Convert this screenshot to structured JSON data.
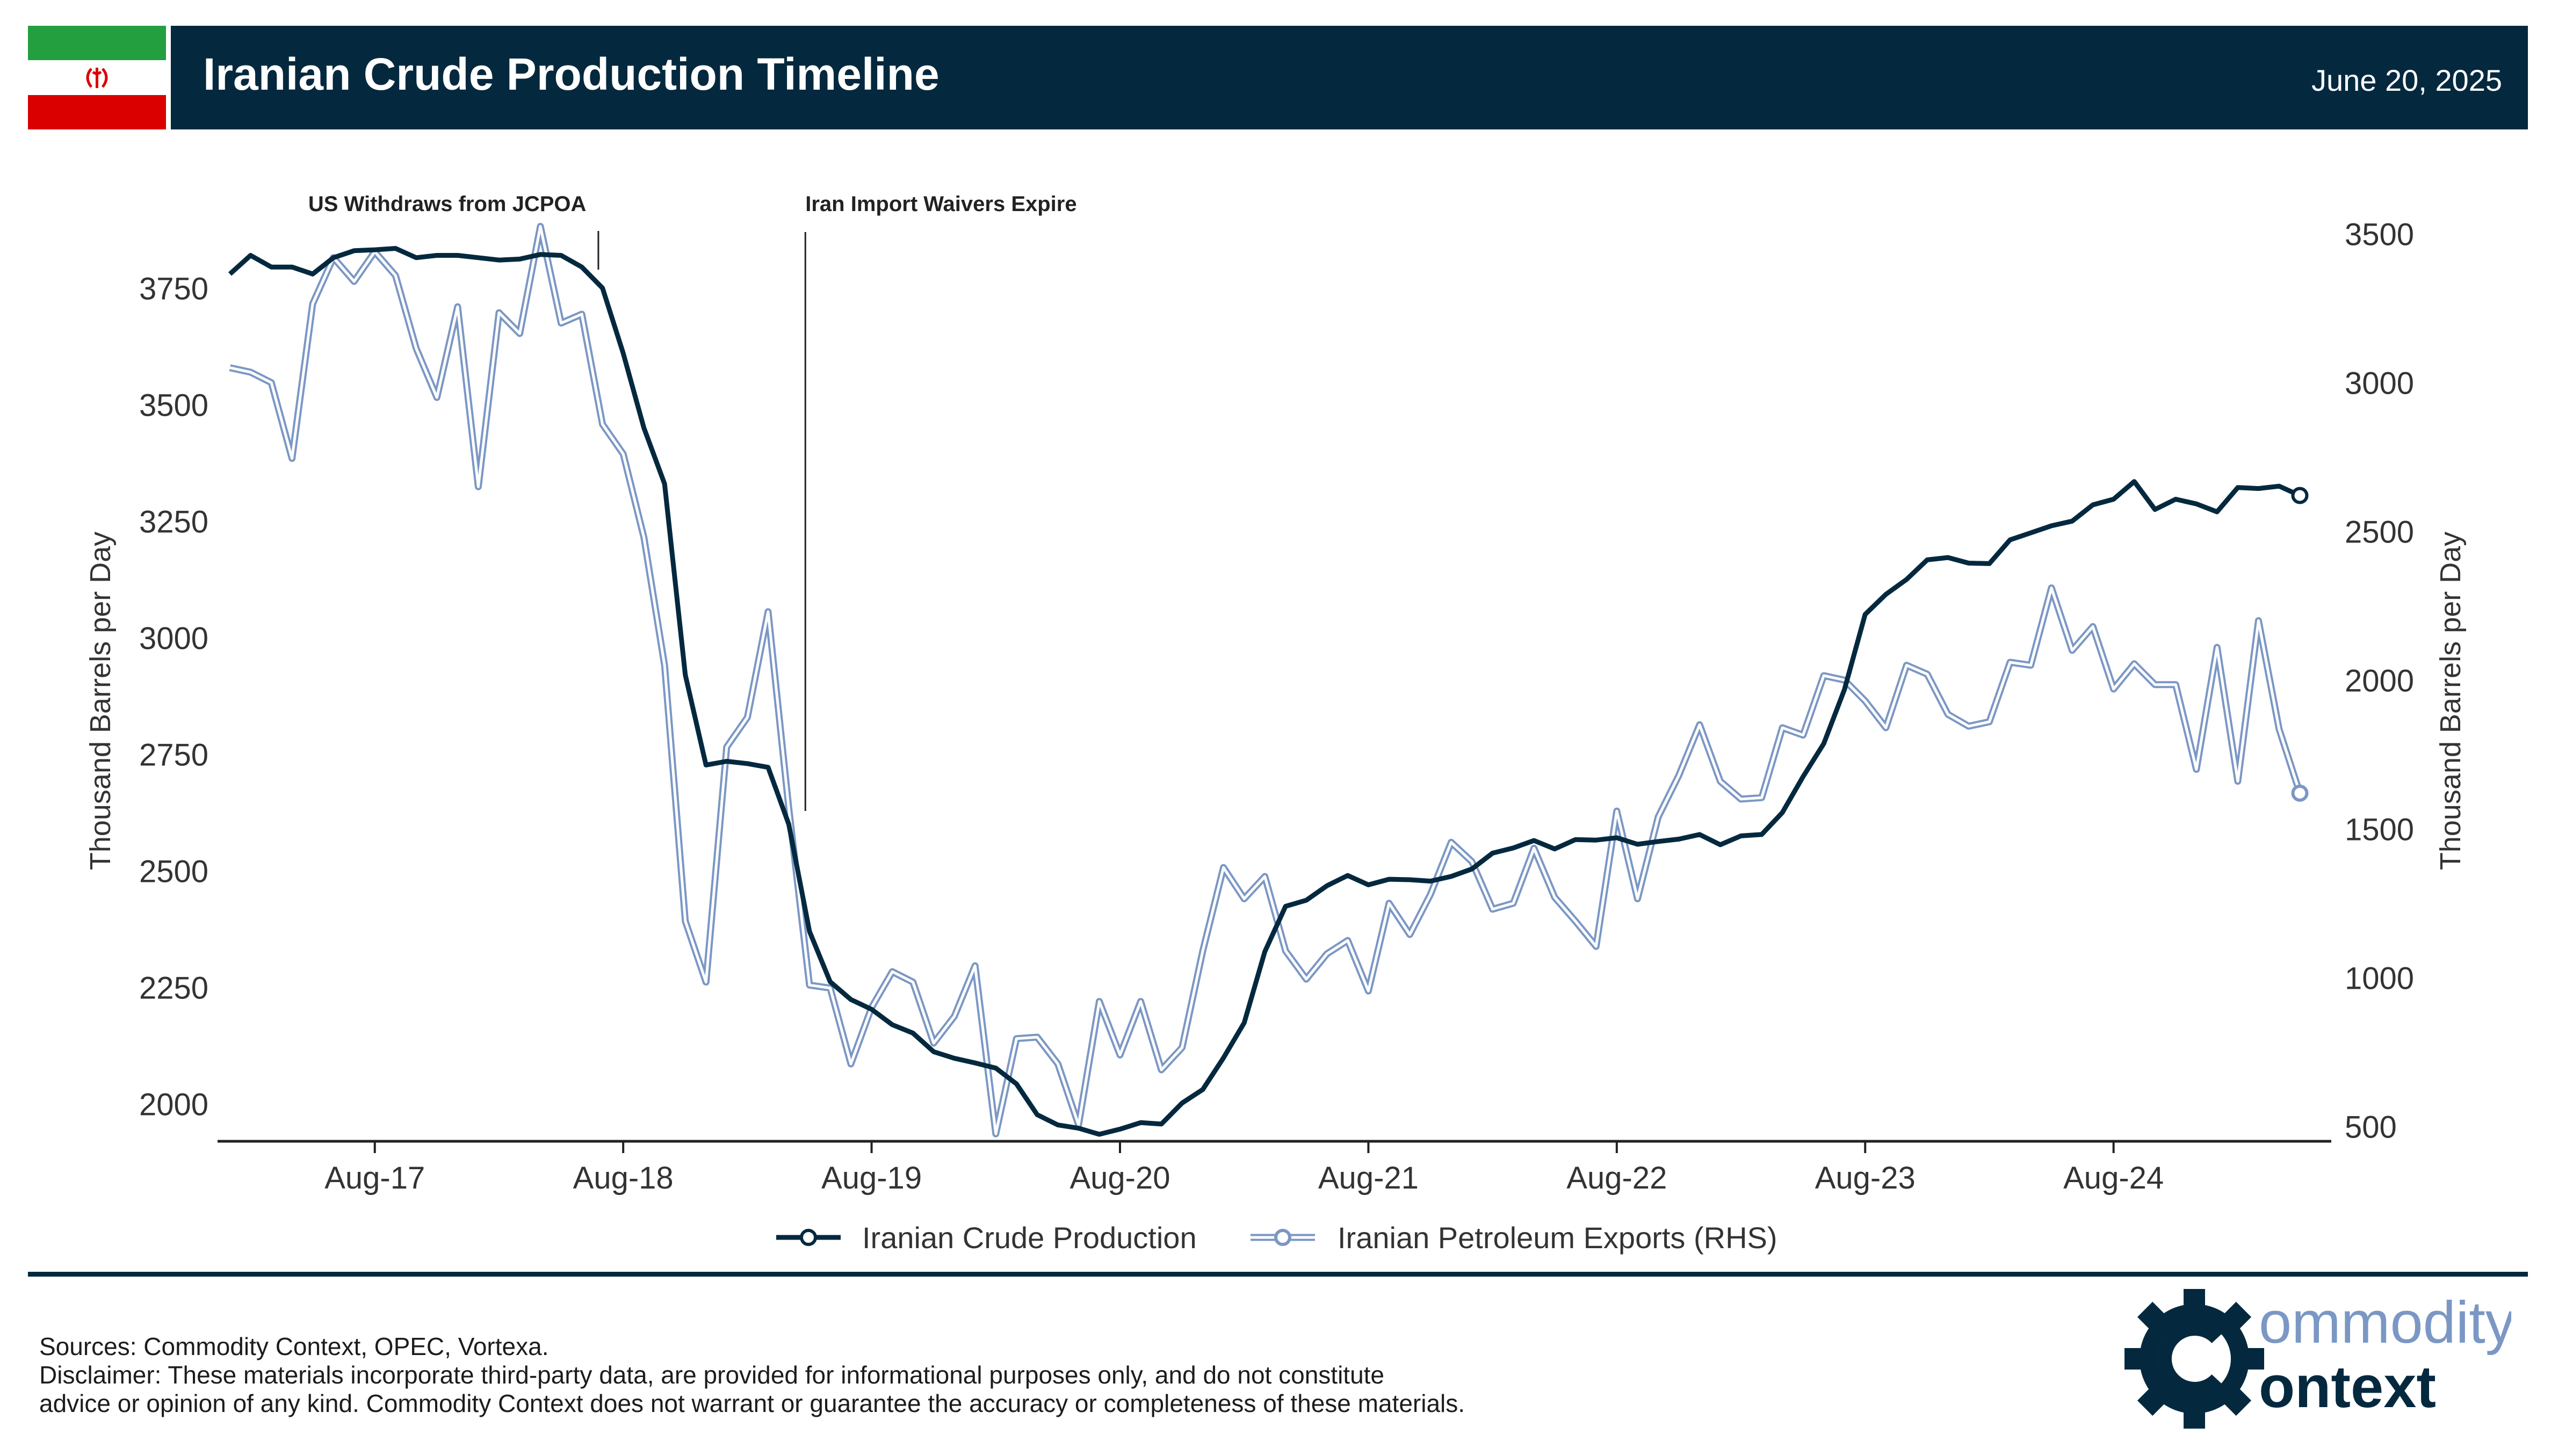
{
  "header": {
    "title": "Iranian Crude Production Timeline",
    "date": "June 20, 2025"
  },
  "footer": {
    "sources": "Sources: Commodity Context, OPEC, Vortexa.",
    "disclaimer_line1": "Disclaimer: These materials incorporate third-party data, are provided for informational purposes only, and do not constitute",
    "disclaimer_line2": "advice or opinion of any kind. Commodity Context does not warrant or guarantee the accuracy or completeness of these materials.",
    "logo_line1": "ommodity",
    "logo_line2": "ontext"
  },
  "colors": {
    "navy": "#04293f",
    "light_blue": "#7b97c4",
    "flag_green": "#239f40",
    "flag_red": "#da0000"
  },
  "chart_data": {
    "type": "line",
    "title": "Iranian Crude Production Timeline",
    "ylabel": "Thousand Barrels per Day",
    "ylabel_right": "Thousand Barrels per Day",
    "ylim": [
      1920,
      3930
    ],
    "ylim_right": [
      450,
      3600
    ],
    "yticks": [
      2000,
      2250,
      2500,
      2750,
      3000,
      3250,
      3500,
      3750
    ],
    "yticks_right": [
      500,
      1000,
      1500,
      2000,
      2500,
      3000,
      3500
    ],
    "x_start": "Jan-17",
    "x_count": 102,
    "xticks": [
      {
        "label": "Aug-17",
        "index": 7
      },
      {
        "label": "Aug-18",
        "index": 19
      },
      {
        "label": "Aug-19",
        "index": 31
      },
      {
        "label": "Aug-20",
        "index": 43
      },
      {
        "label": "Aug-21",
        "index": 55
      },
      {
        "label": "Aug-22",
        "index": 67
      },
      {
        "label": "Aug-23",
        "index": 79
      },
      {
        "label": "Aug-24",
        "index": 91
      }
    ],
    "annotations": [
      {
        "label": "US Withdraws from JCPOA",
        "index": 17.8
      },
      {
        "label": "Iran Import Waivers Expire",
        "index": 27.8
      }
    ],
    "series": [
      {
        "name": "Iranian Crude Production",
        "axis": "left",
        "values": [
          3780,
          3820,
          3795,
          3795,
          3780,
          3815,
          3830,
          3832,
          3835,
          3815,
          3820,
          3820,
          3815,
          3810,
          3812,
          3822,
          3820,
          3795,
          3750,
          3610,
          3450,
          3330,
          2920,
          2727,
          2735,
          2730,
          2722,
          2600,
          2370,
          2262,
          2224,
          2203,
          2170,
          2152,
          2112,
          2098,
          2088,
          2077,
          2043,
          1977,
          1955,
          1948,
          1935,
          1946,
          1960,
          1957,
          2002,
          2031,
          2099,
          2174,
          2327,
          2424,
          2437,
          2468,
          2490,
          2470,
          2482,
          2481,
          2478,
          2488,
          2504,
          2538,
          2549,
          2565,
          2547,
          2567,
          2566,
          2571,
          2557,
          2563,
          2568,
          2578,
          2556,
          2575,
          2578,
          2625,
          2702,
          2773,
          2889,
          3050,
          3093,
          3125,
          3167,
          3172,
          3160,
          3159,
          3210,
          3225,
          3240,
          3250,
          3285,
          3297,
          3335,
          3275,
          3297,
          3287,
          3270,
          3322,
          3320,
          3325,
          3305
        ]
      },
      {
        "name": "Iranian Petroleum Exports (RHS)",
        "axis": "right",
        "values": [
          3050,
          3035,
          3000,
          2745,
          3265,
          3420,
          3340,
          3440,
          3360,
          3115,
          2950,
          3255,
          2650,
          3235,
          3165,
          3525,
          3200,
          3230,
          2860,
          2760,
          2480,
          2050,
          1190,
          985,
          1775,
          1875,
          2230,
          1570,
          975,
          965,
          710,
          900,
          1020,
          985,
          780,
          870,
          1040,
          475,
          795,
          800,
          710,
          505,
          920,
          740,
          920,
          690,
          765,
          1090,
          1370,
          1265,
          1340,
          1090,
          995,
          1080,
          1125,
          955,
          1250,
          1145,
          1280,
          1455,
          1390,
          1230,
          1250,
          1435,
          1270,
          1190,
          1105,
          1560,
          1265,
          1540,
          1680,
          1850,
          1660,
          1600,
          1605,
          1840,
          1815,
          2015,
          2000,
          1930,
          1840,
          2050,
          2020,
          1885,
          1845,
          1860,
          2060,
          2050,
          2310,
          2100,
          2180,
          1970,
          2055,
          1985,
          1985,
          1700,
          2110,
          1660,
          2200,
          1835,
          1620
        ]
      }
    ],
    "legend": [
      "Iranian Crude Production",
      "Iranian Petroleum Exports (RHS)"
    ],
    "legend_position": "bottom-center",
    "grid": false
  }
}
